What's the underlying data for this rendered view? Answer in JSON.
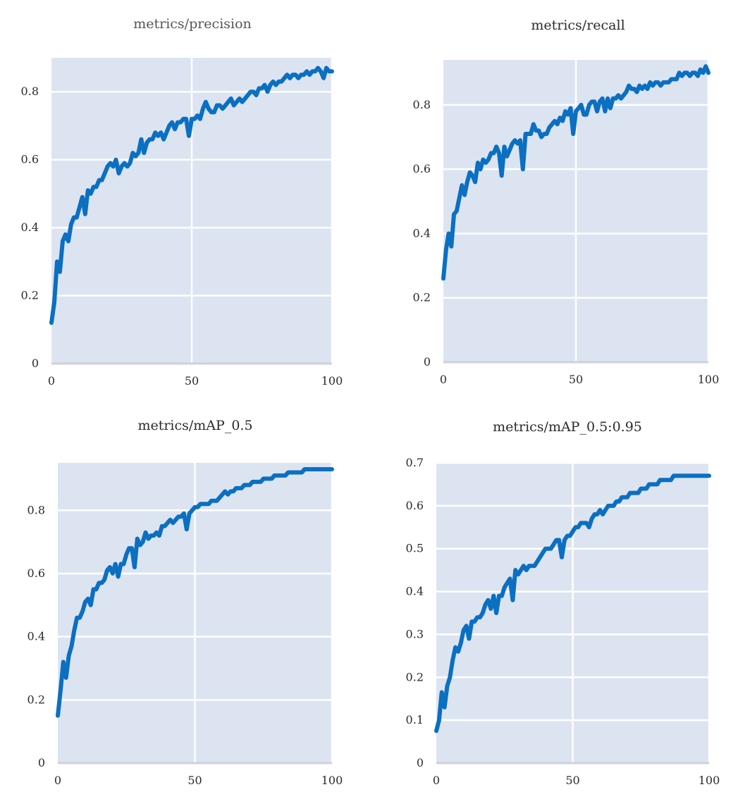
{
  "chart_data": [
    {
      "type": "line",
      "title": "metrics/precision",
      "xlim": [
        0,
        100
      ],
      "ylim": [
        0,
        0.9
      ],
      "xticks": [
        0,
        50,
        100
      ],
      "yticks": [
        0,
        0.2,
        0.4,
        0.6,
        0.8
      ],
      "xtick_labels": [
        "0",
        "50",
        "100"
      ],
      "ytick_labels": [
        "0",
        "0.2",
        "0.4",
        "0.6",
        "0.8"
      ],
      "grid": true,
      "line_color": "#0b6fc2",
      "background": "#dce4f2",
      "series": [
        {
          "x": [
            0,
            1,
            2,
            3,
            4,
            5,
            6,
            7,
            8,
            9,
            10,
            11,
            12,
            13,
            14,
            15,
            16,
            17,
            18,
            19,
            20,
            21,
            22,
            23,
            24,
            25,
            26,
            27,
            28,
            29,
            30,
            31,
            32,
            33,
            34,
            35,
            36,
            37,
            38,
            39,
            40,
            41,
            42,
            43,
            44,
            45,
            46,
            47,
            48,
            49,
            50,
            51,
            52,
            53,
            54,
            55,
            56,
            57,
            58,
            59,
            60,
            61,
            62,
            63,
            64,
            65,
            66,
            67,
            68,
            69,
            70,
            71,
            72,
            73,
            74,
            75,
            76,
            77,
            78,
            79,
            80,
            81,
            82,
            83,
            84,
            85,
            86,
            87,
            88,
            89,
            90,
            91,
            92,
            93,
            94,
            95,
            96,
            97,
            98,
            99,
            100
          ],
          "y": [
            0.12,
            0.18,
            0.3,
            0.27,
            0.36,
            0.38,
            0.36,
            0.41,
            0.43,
            0.43,
            0.46,
            0.49,
            0.44,
            0.51,
            0.5,
            0.52,
            0.52,
            0.54,
            0.54,
            0.56,
            0.58,
            0.59,
            0.58,
            0.6,
            0.56,
            0.58,
            0.59,
            0.58,
            0.59,
            0.62,
            0.61,
            0.62,
            0.66,
            0.62,
            0.65,
            0.66,
            0.66,
            0.68,
            0.67,
            0.68,
            0.66,
            0.68,
            0.7,
            0.71,
            0.69,
            0.71,
            0.71,
            0.72,
            0.72,
            0.67,
            0.72,
            0.72,
            0.73,
            0.72,
            0.75,
            0.77,
            0.75,
            0.74,
            0.74,
            0.76,
            0.76,
            0.75,
            0.76,
            0.77,
            0.78,
            0.76,
            0.77,
            0.78,
            0.77,
            0.78,
            0.79,
            0.8,
            0.8,
            0.79,
            0.81,
            0.81,
            0.82,
            0.8,
            0.82,
            0.83,
            0.82,
            0.83,
            0.83,
            0.84,
            0.85,
            0.84,
            0.85,
            0.85,
            0.84,
            0.85,
            0.85,
            0.86,
            0.85,
            0.86,
            0.86,
            0.87,
            0.86,
            0.84,
            0.87,
            0.86,
            0.86
          ]
        }
      ]
    },
    {
      "type": "line",
      "title": "metrics/recall",
      "xlim": [
        0,
        100
      ],
      "ylim": [
        0,
        0.94
      ],
      "xticks": [
        0,
        50,
        100
      ],
      "yticks": [
        0,
        0.2,
        0.4,
        0.6,
        0.8
      ],
      "xtick_labels": [
        "0",
        "50",
        "100"
      ],
      "ytick_labels": [
        "0",
        "0.2",
        "0.4",
        "0.6",
        "0.8"
      ],
      "grid": true,
      "line_color": "#0b6fc2",
      "background": "#dce4f2",
      "series": [
        {
          "x": [
            0,
            1,
            2,
            3,
            4,
            5,
            6,
            7,
            8,
            9,
            10,
            11,
            12,
            13,
            14,
            15,
            16,
            17,
            18,
            19,
            20,
            21,
            22,
            23,
            24,
            25,
            26,
            27,
            28,
            29,
            30,
            31,
            32,
            33,
            34,
            35,
            36,
            37,
            38,
            39,
            40,
            41,
            42,
            43,
            44,
            45,
            46,
            47,
            48,
            49,
            50,
            51,
            52,
            53,
            54,
            55,
            56,
            57,
            58,
            59,
            60,
            61,
            62,
            63,
            64,
            65,
            66,
            67,
            68,
            69,
            70,
            71,
            72,
            73,
            74,
            75,
            76,
            77,
            78,
            79,
            80,
            81,
            82,
            83,
            84,
            85,
            86,
            87,
            88,
            89,
            90,
            91,
            92,
            93,
            94,
            95,
            96,
            97,
            98,
            99,
            100
          ],
          "y": [
            0.26,
            0.35,
            0.4,
            0.36,
            0.46,
            0.47,
            0.51,
            0.55,
            0.52,
            0.56,
            0.59,
            0.58,
            0.56,
            0.62,
            0.6,
            0.63,
            0.62,
            0.63,
            0.65,
            0.65,
            0.67,
            0.65,
            0.58,
            0.67,
            0.64,
            0.66,
            0.68,
            0.69,
            0.68,
            0.69,
            0.6,
            0.71,
            0.71,
            0.71,
            0.74,
            0.72,
            0.72,
            0.7,
            0.71,
            0.71,
            0.73,
            0.74,
            0.75,
            0.74,
            0.76,
            0.75,
            0.78,
            0.77,
            0.79,
            0.71,
            0.78,
            0.79,
            0.8,
            0.77,
            0.77,
            0.8,
            0.81,
            0.81,
            0.78,
            0.81,
            0.82,
            0.78,
            0.82,
            0.79,
            0.82,
            0.82,
            0.83,
            0.82,
            0.83,
            0.84,
            0.86,
            0.85,
            0.85,
            0.84,
            0.86,
            0.85,
            0.86,
            0.85,
            0.87,
            0.86,
            0.87,
            0.87,
            0.86,
            0.87,
            0.87,
            0.87,
            0.88,
            0.88,
            0.88,
            0.9,
            0.89,
            0.9,
            0.9,
            0.89,
            0.9,
            0.9,
            0.89,
            0.91,
            0.9,
            0.92,
            0.9
          ]
        }
      ]
    },
    {
      "type": "line",
      "title": "metrics/mAP_0.5",
      "xlim": [
        0,
        100
      ],
      "ylim": [
        0,
        0.95
      ],
      "xticks": [
        0,
        50,
        100
      ],
      "yticks": [
        0,
        0.2,
        0.4,
        0.6,
        0.8
      ],
      "xtick_labels": [
        "0",
        "50",
        "100"
      ],
      "ytick_labels": [
        "0",
        "0.2",
        "0.4",
        "0.6",
        "0.8"
      ],
      "grid": true,
      "line_color": "#0b6fc2",
      "background": "#dce4f2",
      "series": [
        {
          "x": [
            0,
            1,
            2,
            3,
            4,
            5,
            6,
            7,
            8,
            9,
            10,
            11,
            12,
            13,
            14,
            15,
            16,
            17,
            18,
            19,
            20,
            21,
            22,
            23,
            24,
            25,
            26,
            27,
            28,
            29,
            30,
            31,
            32,
            33,
            34,
            35,
            36,
            37,
            38,
            39,
            40,
            41,
            42,
            43,
            44,
            45,
            46,
            47,
            48,
            49,
            50,
            51,
            52,
            53,
            54,
            55,
            56,
            57,
            58,
            59,
            60,
            61,
            62,
            63,
            64,
            65,
            66,
            67,
            68,
            69,
            70,
            71,
            72,
            73,
            74,
            75,
            76,
            77,
            78,
            79,
            80,
            81,
            82,
            83,
            84,
            85,
            86,
            87,
            88,
            89,
            90,
            91,
            92,
            93,
            94,
            95,
            96,
            97,
            98,
            99,
            100
          ],
          "y": [
            0.15,
            0.23,
            0.32,
            0.27,
            0.34,
            0.37,
            0.42,
            0.46,
            0.46,
            0.48,
            0.51,
            0.52,
            0.5,
            0.55,
            0.55,
            0.57,
            0.57,
            0.58,
            0.61,
            0.62,
            0.6,
            0.63,
            0.59,
            0.63,
            0.63,
            0.66,
            0.68,
            0.68,
            0.62,
            0.71,
            0.69,
            0.7,
            0.73,
            0.71,
            0.72,
            0.72,
            0.73,
            0.72,
            0.75,
            0.75,
            0.76,
            0.77,
            0.76,
            0.77,
            0.78,
            0.78,
            0.79,
            0.74,
            0.79,
            0.8,
            0.81,
            0.81,
            0.82,
            0.82,
            0.82,
            0.82,
            0.83,
            0.83,
            0.83,
            0.84,
            0.85,
            0.86,
            0.85,
            0.86,
            0.86,
            0.87,
            0.87,
            0.87,
            0.88,
            0.88,
            0.88,
            0.89,
            0.89,
            0.89,
            0.89,
            0.9,
            0.9,
            0.9,
            0.9,
            0.91,
            0.91,
            0.91,
            0.91,
            0.91,
            0.92,
            0.92,
            0.92,
            0.92,
            0.92,
            0.92,
            0.93,
            0.93,
            0.93,
            0.93,
            0.93,
            0.93,
            0.93,
            0.93,
            0.93,
            0.93,
            0.93
          ]
        }
      ]
    },
    {
      "type": "line",
      "title": "metrics/mAP_0.5:0.95",
      "xlim": [
        0,
        100
      ],
      "ylim": [
        0,
        0.7
      ],
      "xticks": [
        0,
        50,
        100
      ],
      "yticks": [
        0,
        0.1,
        0.2,
        0.3,
        0.4,
        0.5,
        0.6,
        0.7
      ],
      "xtick_labels": [
        "0",
        "50",
        "100"
      ],
      "ytick_labels": [
        "0",
        "0.1",
        "0.2",
        "0.3",
        "0.4",
        "0.5",
        "0.6",
        "0.7"
      ],
      "grid": true,
      "line_color": "#0b6fc2",
      "background": "#dce4f2",
      "series": [
        {
          "x": [
            0,
            1,
            2,
            3,
            4,
            5,
            6,
            7,
            8,
            9,
            10,
            11,
            12,
            13,
            14,
            15,
            16,
            17,
            18,
            19,
            20,
            21,
            22,
            23,
            24,
            25,
            26,
            27,
            28,
            29,
            30,
            31,
            32,
            33,
            34,
            35,
            36,
            37,
            38,
            39,
            40,
            41,
            42,
            43,
            44,
            45,
            46,
            47,
            48,
            49,
            50,
            51,
            52,
            53,
            54,
            55,
            56,
            57,
            58,
            59,
            60,
            61,
            62,
            63,
            64,
            65,
            66,
            67,
            68,
            69,
            70,
            71,
            72,
            73,
            74,
            75,
            76,
            77,
            78,
            79,
            80,
            81,
            82,
            83,
            84,
            85,
            86,
            87,
            88,
            89,
            90,
            91,
            92,
            93,
            94,
            95,
            96,
            97,
            98,
            99,
            100
          ],
          "y": [
            0.075,
            0.1,
            0.165,
            0.13,
            0.18,
            0.2,
            0.24,
            0.27,
            0.26,
            0.28,
            0.31,
            0.32,
            0.29,
            0.33,
            0.33,
            0.34,
            0.34,
            0.35,
            0.37,
            0.38,
            0.36,
            0.39,
            0.35,
            0.39,
            0.39,
            0.41,
            0.42,
            0.43,
            0.38,
            0.45,
            0.44,
            0.45,
            0.46,
            0.45,
            0.46,
            0.46,
            0.46,
            0.47,
            0.48,
            0.49,
            0.5,
            0.5,
            0.5,
            0.51,
            0.52,
            0.52,
            0.48,
            0.52,
            0.53,
            0.53,
            0.54,
            0.55,
            0.55,
            0.56,
            0.56,
            0.56,
            0.55,
            0.57,
            0.58,
            0.58,
            0.59,
            0.58,
            0.59,
            0.6,
            0.6,
            0.6,
            0.61,
            0.61,
            0.62,
            0.62,
            0.62,
            0.63,
            0.63,
            0.63,
            0.63,
            0.64,
            0.64,
            0.64,
            0.65,
            0.65,
            0.65,
            0.65,
            0.66,
            0.66,
            0.66,
            0.66,
            0.66,
            0.67,
            0.67,
            0.67,
            0.67,
            0.67,
            0.67,
            0.67,
            0.67,
            0.67,
            0.67,
            0.67,
            0.67,
            0.67,
            0.67
          ]
        }
      ]
    }
  ]
}
